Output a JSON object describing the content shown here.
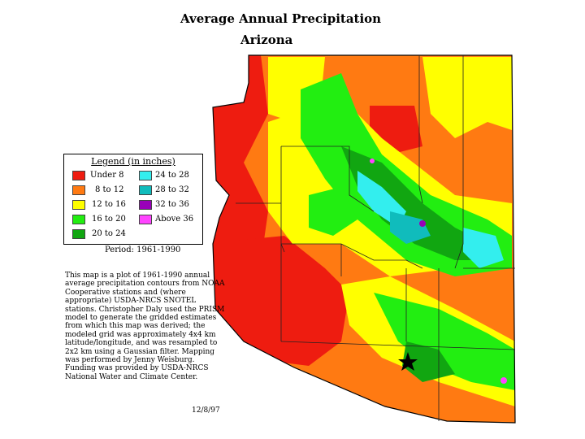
{
  "title": "Average Annual Precipitation",
  "subtitle": "Arizona",
  "legend": {
    "title": "Legend (in inches)",
    "items": [
      {
        "label": "Under 8",
        "color": "#ee1c10"
      },
      {
        "label": "8 to 12",
        "color": "#ff7a12"
      },
      {
        "label": "12 to 16",
        "color": "#ffff00"
      },
      {
        "label": "16 to 20",
        "color": "#22ee11"
      },
      {
        "label": "20 to 24",
        "color": "#11a611"
      },
      {
        "label": "24 to 28",
        "color": "#33eeee"
      },
      {
        "label": "28 to 32",
        "color": "#10bcbc"
      },
      {
        "label": "32 to 36",
        "color": "#9900b8"
      },
      {
        "label": "Above 36",
        "color": "#ff44ff"
      }
    ]
  },
  "period": "Period: 1961-1990",
  "description": "This map is a plot of 1961-1990 annual average precipitation contours from NOAA Cooperative stations and (where appropriate) USDA-NRCS SNOTEL stations. Christopher Daly used the PRISM model to generate the gridded estimates from which this map was derived; the modeled grid was approximately 4x4 km latitude/longitude, and was resampled to 2x2 km using a Gaussian filter. Mapping was performed by Jenny Weisburg. Funding was provided by USDA-NRCS National Water and Climate Center.",
  "date": "12/8/97",
  "marker_icon": "star-icon"
}
